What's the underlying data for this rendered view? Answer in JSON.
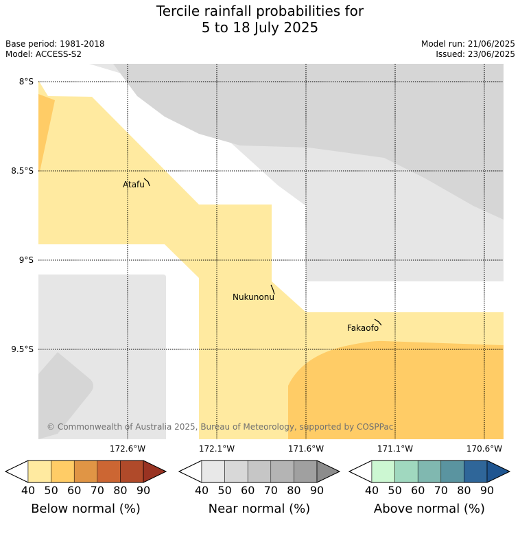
{
  "title": {
    "line1": "Tercile rainfall probabilities for",
    "line2": "5 to 18 July 2025"
  },
  "meta": {
    "base_period": "Base period: 1981-2018",
    "model": "Model: ACCESS-S2",
    "model_run": "Model run: 21/06/2025",
    "issued": "Issued: 23/06/2025"
  },
  "map": {
    "lat_labels": [
      "8°S",
      "8.5°S",
      "9°S",
      "9.5°S"
    ],
    "lon_labels": [
      "172.6°W",
      "172.1°W",
      "171.6°W",
      "171.1°W",
      "170.6°W"
    ],
    "places": [
      "Atafu",
      "Nukunonu",
      "Fakaofo"
    ],
    "copyright": "© Commonwealth of Australia 2025, Bureau of Meteorology, supported by COSPPac"
  },
  "legend": {
    "below": {
      "title": "Below normal (%)",
      "ticks": [
        "40",
        "50",
        "60",
        "70",
        "80",
        "90"
      ],
      "colors": [
        "#ffffff",
        "#ffeaa0",
        "#ffcc66",
        "#e09545",
        "#cc6633",
        "#b04a2a",
        "#993322"
      ]
    },
    "near": {
      "title": "Near normal (%)",
      "ticks": [
        "40",
        "50",
        "60",
        "70",
        "80",
        "90"
      ],
      "colors": [
        "#ffffff",
        "#e8e8e8",
        "#d8d8d8",
        "#c6c6c6",
        "#b4b4b4",
        "#a0a0a0",
        "#8c8c8c"
      ]
    },
    "above": {
      "title": "Above normal (%)",
      "ticks": [
        "40",
        "50",
        "60",
        "70",
        "80",
        "90"
      ],
      "colors": [
        "#ffffff",
        "#ccf7d2",
        "#a0d8bf",
        "#80b8b0",
        "#5a94a0",
        "#2f6699",
        "#1f5590"
      ]
    }
  },
  "colors": {
    "near_light": "#e6e6e6",
    "near_mid": "#d6d6d6",
    "below_light": "#ffeaa0",
    "below_mid": "#ffcc66"
  }
}
